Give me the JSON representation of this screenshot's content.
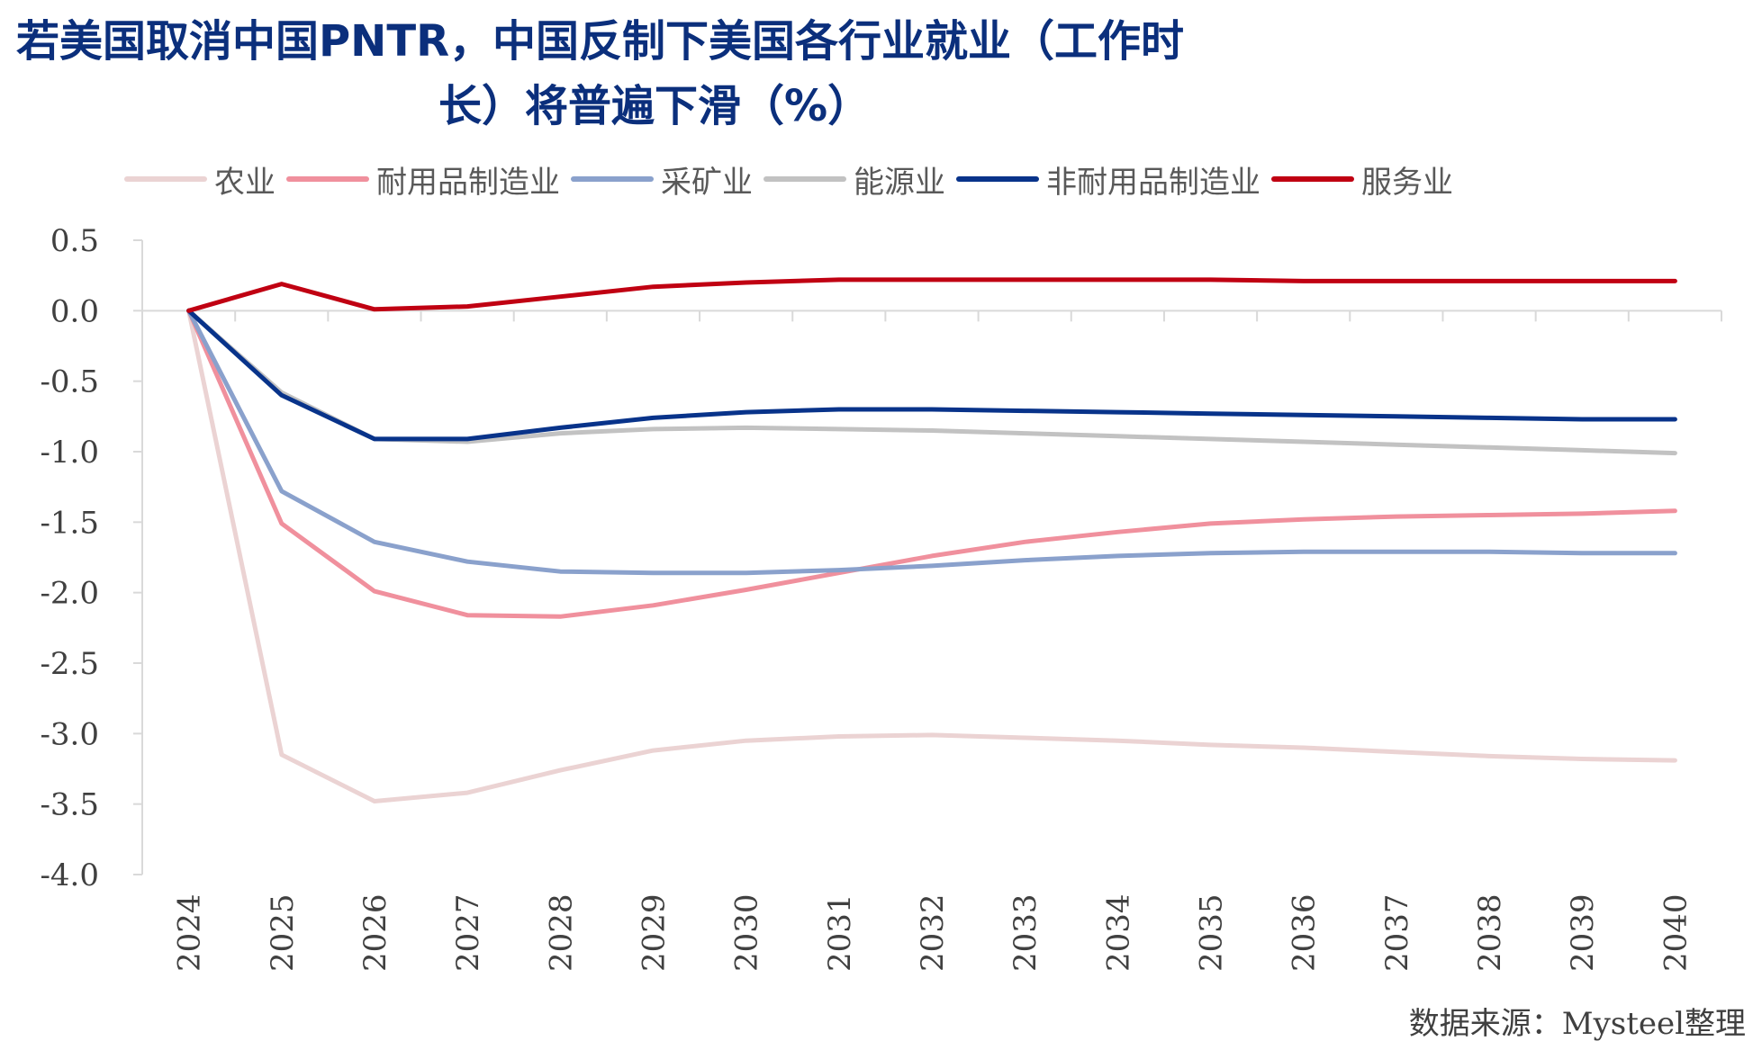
{
  "title": {
    "line1": "若美国取消中国PNTR，中国反制下美国各行业就业（工作时",
    "line2": "长）将普遍下滑（%）"
  },
  "source": "数据来源：Mysteel整理",
  "chart_data": {
    "type": "line",
    "title": "若美国取消中国PNTR，中国反制下美国各行业就业（工作时长）将普遍下滑（%）",
    "x": [
      "2024",
      "2025",
      "2026",
      "2027",
      "2028",
      "2029",
      "2030",
      "2031",
      "2032",
      "2033",
      "2034",
      "2035",
      "2036",
      "2037",
      "2038",
      "2039",
      "2040"
    ],
    "xlabel": "",
    "ylabel": "",
    "ylim": [
      -4.0,
      0.5
    ],
    "yticks": [
      "0.5",
      "0.0",
      "-0.5",
      "-1.0",
      "-1.5",
      "-2.0",
      "-2.5",
      "-3.0",
      "-3.5",
      "-4.0"
    ],
    "legend_position": "top",
    "grid": false,
    "series": [
      {
        "name": "农业",
        "color": "#ebd3d3",
        "values": [
          0,
          -3.15,
          -3.48,
          -3.42,
          -3.26,
          -3.12,
          -3.05,
          -3.02,
          -3.01,
          -3.03,
          -3.05,
          -3.08,
          -3.1,
          -3.13,
          -3.16,
          -3.18,
          -3.19
        ]
      },
      {
        "name": "耐用品制造业",
        "color": "#f0909d",
        "values": [
          0,
          -1.51,
          -1.99,
          -2.16,
          -2.17,
          -2.09,
          -1.98,
          -1.86,
          -1.74,
          -1.64,
          -1.57,
          -1.51,
          -1.48,
          -1.46,
          -1.45,
          -1.44,
          -1.42
        ]
      },
      {
        "name": "采矿业",
        "color": "#8aa1cc",
        "values": [
          0,
          -1.28,
          -1.64,
          -1.78,
          -1.85,
          -1.86,
          -1.86,
          -1.84,
          -1.81,
          -1.77,
          -1.74,
          -1.72,
          -1.71,
          -1.71,
          -1.71,
          -1.72,
          -1.72
        ]
      },
      {
        "name": "能源业",
        "color": "#c2c2c2",
        "values": [
          0,
          -0.58,
          -0.91,
          -0.93,
          -0.87,
          -0.84,
          -0.83,
          -0.84,
          -0.85,
          -0.87,
          -0.89,
          -0.91,
          -0.93,
          -0.95,
          -0.97,
          -0.99,
          -1.01
        ]
      },
      {
        "name": "非耐用品制造业",
        "color": "#08338a",
        "values": [
          0,
          -0.6,
          -0.91,
          -0.91,
          -0.83,
          -0.76,
          -0.72,
          -0.7,
          -0.7,
          -0.71,
          -0.72,
          -0.73,
          -0.74,
          -0.75,
          -0.76,
          -0.77,
          -0.77
        ]
      },
      {
        "name": "服务业",
        "color": "#c00012",
        "values": [
          0,
          0.19,
          0.01,
          0.03,
          0.1,
          0.17,
          0.2,
          0.22,
          0.22,
          0.22,
          0.22,
          0.22,
          0.21,
          0.21,
          0.21,
          0.21,
          0.21
        ]
      }
    ]
  }
}
